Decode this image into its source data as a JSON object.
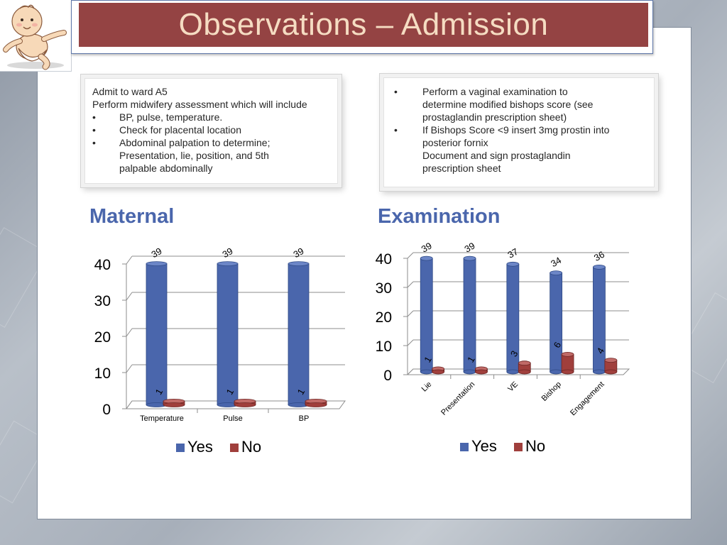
{
  "slide": {
    "title": "Observations – Admission",
    "colors": {
      "title_bar": "#944343",
      "title_text": "#f5dcc2",
      "heading": "#4a66ac",
      "yes": "#4a66ac",
      "no": "#a03f3c"
    }
  },
  "left_note": {
    "plain_lines": [
      "Admit to ward A5",
      "Perform midwifery assessment which will include"
    ],
    "bullet_char": "•",
    "bullets": [
      {
        "lines": [
          "BP, pulse, temperature."
        ]
      },
      {
        "lines": [
          "Check for placental location"
        ]
      },
      {
        "lines": [
          "Abdominal palpation to determine;",
          "Presentation, lie, position, and 5th",
          "palpable abdominally"
        ]
      }
    ]
  },
  "right_note": {
    "bullet_char": "•",
    "bullets": [
      {
        "lines": [
          "Perform a vaginal examination to",
          "determine modified bishops score (see",
          "prostaglandin prescription sheet)"
        ]
      },
      {
        "lines": [
          "If Bishops Score <9 insert 3mg prostin into",
          "posterior fornix",
          "Document and sign prostaglandin",
          "prescription sheet"
        ]
      }
    ]
  },
  "headings": {
    "maternal": "Maternal",
    "examination": "Examination"
  },
  "chart_data": [
    {
      "type": "bar",
      "title": "",
      "categories": [
        "Temperature",
        "Pulse",
        "BP"
      ],
      "series": [
        {
          "name": "Yes",
          "values": [
            39,
            39,
            39
          ]
        },
        {
          "name": "No",
          "values": [
            1,
            1,
            1
          ]
        }
      ],
      "ylim": [
        0,
        40
      ],
      "yticks": [
        0,
        10,
        20,
        30,
        40
      ],
      "grid": true,
      "legend": "bottom",
      "style": "3d-cylinder"
    },
    {
      "type": "bar",
      "title": "",
      "categories": [
        "Lie",
        "Presentation",
        "VE",
        "Bishop",
        "Engagement"
      ],
      "series": [
        {
          "name": "Yes",
          "values": [
            39,
            39,
            37,
            34,
            36
          ]
        },
        {
          "name": "No",
          "values": [
            1,
            1,
            3,
            6,
            4
          ]
        }
      ],
      "ylim": [
        0,
        40
      ],
      "yticks": [
        0,
        10,
        20,
        30,
        40
      ],
      "grid": true,
      "legend": "bottom",
      "style": "3d-cylinder"
    }
  ]
}
